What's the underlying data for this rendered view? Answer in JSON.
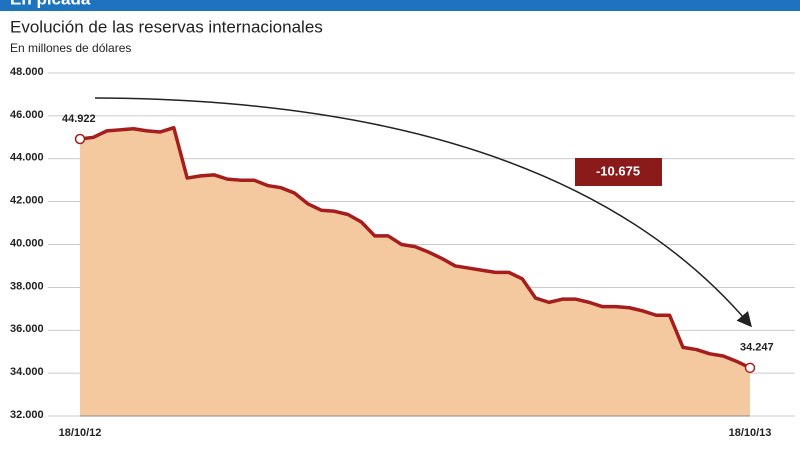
{
  "header": "En picada",
  "chart_data": {
    "type": "line",
    "title": "Evolución de las reservas internacionales",
    "subtitle": "En millones de dólares",
    "annotation": "-10.675",
    "color": "#a51d1d",
    "fill": "#f5c9a0",
    "grid": true,
    "ylim": [
      32000,
      48000
    ],
    "yticks": [
      {
        "value": 32000,
        "label": "32.000"
      },
      {
        "value": 34000,
        "label": "34.000"
      },
      {
        "value": 36000,
        "label": "36.000"
      },
      {
        "value": 38000,
        "label": "38.000"
      },
      {
        "value": 40000,
        "label": "40.000"
      },
      {
        "value": 42000,
        "label": "42.000"
      },
      {
        "value": 44000,
        "label": "44.000"
      },
      {
        "value": 46000,
        "label": "46.000"
      },
      {
        "value": 48000,
        "label": "48.000"
      }
    ],
    "categories": [
      "18/10/12",
      null,
      null,
      null,
      null,
      null,
      null,
      null,
      null,
      null,
      null,
      null,
      null,
      null,
      null,
      null,
      null,
      null,
      null,
      null,
      null,
      null,
      null,
      null,
      null,
      null,
      null,
      null,
      null,
      null,
      null,
      null,
      null,
      null,
      null,
      null,
      null,
      null,
      null,
      null,
      null,
      null,
      null,
      null,
      null,
      null,
      null,
      null,
      null,
      null,
      "18/10/13"
    ],
    "values": [
      44922,
      45000,
      45300,
      45350,
      45400,
      45300,
      45250,
      45450,
      43100,
      43200,
      43250,
      43050,
      43000,
      43000,
      42750,
      42650,
      42400,
      41900,
      41600,
      41550,
      41400,
      41050,
      40400,
      40400,
      40000,
      39900,
      39650,
      39350,
      39000,
      38900,
      38800,
      38700,
      38700,
      38400,
      37500,
      37300,
      37450,
      37450,
      37300,
      37100,
      37100,
      37050,
      36900,
      36700,
      36700,
      35200,
      35100,
      34900,
      34800,
      34550,
      34247
    ],
    "value_labels": [
      "44.922",
      null,
      null,
      null,
      null,
      null,
      null,
      null,
      null,
      null,
      null,
      null,
      null,
      null,
      null,
      null,
      null,
      null,
      null,
      null,
      null,
      null,
      null,
      null,
      null,
      null,
      null,
      null,
      null,
      null,
      null,
      null,
      null,
      null,
      null,
      null,
      null,
      null,
      null,
      null,
      null,
      null,
      null,
      null,
      null,
      null,
      null,
      null,
      null,
      null,
      "34.247"
    ]
  }
}
